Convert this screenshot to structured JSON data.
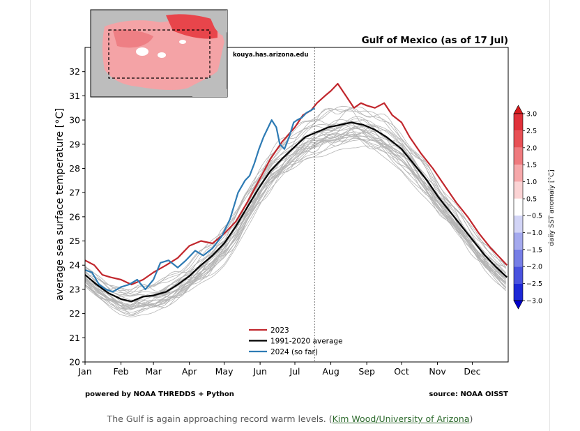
{
  "chart_data": {
    "type": "line",
    "title": "Gulf of Mexico (as of 17 Jul)",
    "xlabel": "",
    "ylabel": "average sea surface temperature [°C]",
    "xlim": [
      0,
      365
    ],
    "ylim": [
      20,
      33
    ],
    "yticks": [
      20,
      21,
      22,
      23,
      24,
      25,
      26,
      27,
      28,
      29,
      30,
      31,
      32
    ],
    "xticks": [
      {
        "label": "Jan",
        "day": 0
      },
      {
        "label": "Feb",
        "day": 31
      },
      {
        "label": "Mar",
        "day": 59
      },
      {
        "label": "Apr",
        "day": 90
      },
      {
        "label": "May",
        "day": 120
      },
      {
        "label": "Jun",
        "day": 151
      },
      {
        "label": "Jul",
        "day": 181
      },
      {
        "label": "Aug",
        "day": 212
      },
      {
        "label": "Sep",
        "day": 243
      },
      {
        "label": "Oct",
        "day": 273
      },
      {
        "label": "Nov",
        "day": 304
      },
      {
        "label": "Dec",
        "day": 334
      }
    ],
    "current_day": 198,
    "watermark": "kouya.has.arizona.edu",
    "footer_left": "powered by NOAA THREDDS + Python",
    "footer_right": "source: NOAA OISST",
    "legend_position": "lower-center",
    "series": [
      {
        "name": "2023",
        "color": "#c1272d",
        "x": [
          0,
          8,
          15,
          22,
          31,
          40,
          50,
          59,
          70,
          80,
          90,
          100,
          110,
          120,
          130,
          140,
          150,
          160,
          170,
          181,
          188,
          195,
          200,
          207,
          212,
          218,
          225,
          232,
          238,
          243,
          250,
          258,
          265,
          273,
          280,
          290,
          300,
          310,
          320,
          330,
          340,
          350,
          358,
          364
        ],
        "y": [
          24.2,
          24.0,
          23.6,
          23.5,
          23.4,
          23.2,
          23.4,
          23.7,
          24.0,
          24.3,
          24.8,
          25.0,
          24.9,
          25.3,
          25.8,
          26.6,
          27.5,
          28.4,
          29.1,
          29.7,
          30.2,
          30.4,
          30.7,
          31.0,
          31.2,
          31.5,
          31.0,
          30.5,
          30.7,
          30.6,
          30.5,
          30.7,
          30.2,
          29.9,
          29.3,
          28.6,
          28.0,
          27.3,
          26.6,
          26.0,
          25.3,
          24.7,
          24.3,
          24.0
        ]
      },
      {
        "name": "1991-2020 average",
        "color": "#000000",
        "x": [
          0,
          10,
          20,
          31,
          40,
          50,
          59,
          70,
          80,
          90,
          100,
          110,
          120,
          130,
          140,
          150,
          160,
          170,
          181,
          190,
          200,
          210,
          220,
          230,
          240,
          250,
          260,
          273,
          285,
          295,
          305,
          315,
          325,
          335,
          345,
          355,
          364
        ],
        "y": [
          23.6,
          23.2,
          22.85,
          22.6,
          22.5,
          22.7,
          22.75,
          22.9,
          23.2,
          23.55,
          24.0,
          24.4,
          24.9,
          25.6,
          26.4,
          27.2,
          27.9,
          28.4,
          28.9,
          29.3,
          29.5,
          29.7,
          29.8,
          29.9,
          29.8,
          29.6,
          29.3,
          28.8,
          28.1,
          27.5,
          26.8,
          26.2,
          25.6,
          25.0,
          24.4,
          23.9,
          23.5
        ]
      },
      {
        "name": "2024 (so far)",
        "color": "#2e7bb4",
        "x": [
          0,
          6,
          12,
          18,
          24,
          31,
          38,
          45,
          52,
          59,
          65,
          72,
          80,
          87,
          95,
          102,
          110,
          118,
          125,
          132,
          138,
          142,
          146,
          150,
          154,
          157,
          161,
          165,
          168,
          172,
          176,
          180,
          183,
          187,
          191,
          195,
          198
        ],
        "y": [
          23.8,
          23.7,
          23.2,
          23.0,
          22.9,
          23.1,
          23.2,
          23.4,
          23.0,
          23.4,
          24.1,
          24.2,
          23.9,
          24.2,
          24.6,
          24.4,
          24.7,
          25.2,
          25.9,
          27.0,
          27.5,
          27.7,
          28.2,
          28.8,
          29.3,
          29.6,
          30.0,
          29.7,
          29.0,
          28.8,
          29.3,
          29.9,
          30.0,
          30.1,
          30.3,
          30.4,
          30.5
        ]
      }
    ],
    "colorbar": {
      "label": "daily SST anomaly [°C]",
      "ticks": [
        3.0,
        2.5,
        2.0,
        1.5,
        1.0,
        0.5,
        -0.5,
        -1.0,
        -1.5,
        -2.0,
        -2.5,
        -3.0
      ],
      "tick_labels": [
        "3.0",
        "2.5",
        "2.0",
        "1.5",
        "1.0",
        "0.5",
        "−0.5",
        "−1.0",
        "−1.5",
        "−2.0",
        "−2.5",
        "−3.0"
      ],
      "colors": [
        "#d7191c",
        "#e0313a",
        "#e85055",
        "#ef7a7e",
        "#f6a8aa",
        "#fbd3d4",
        "#ffffff",
        "#d2d4f6",
        "#a4a9ee",
        "#767ee6",
        "#4952de",
        "#1c27d6",
        "#0000cc"
      ]
    },
    "inset_map": {
      "description_tag": "gulf-anomaly-map"
    }
  },
  "caption": {
    "text": "The Gulf is again approaching record warm levels. (",
    "link": "Kim Wood/University of Arizona",
    "close": ")"
  }
}
